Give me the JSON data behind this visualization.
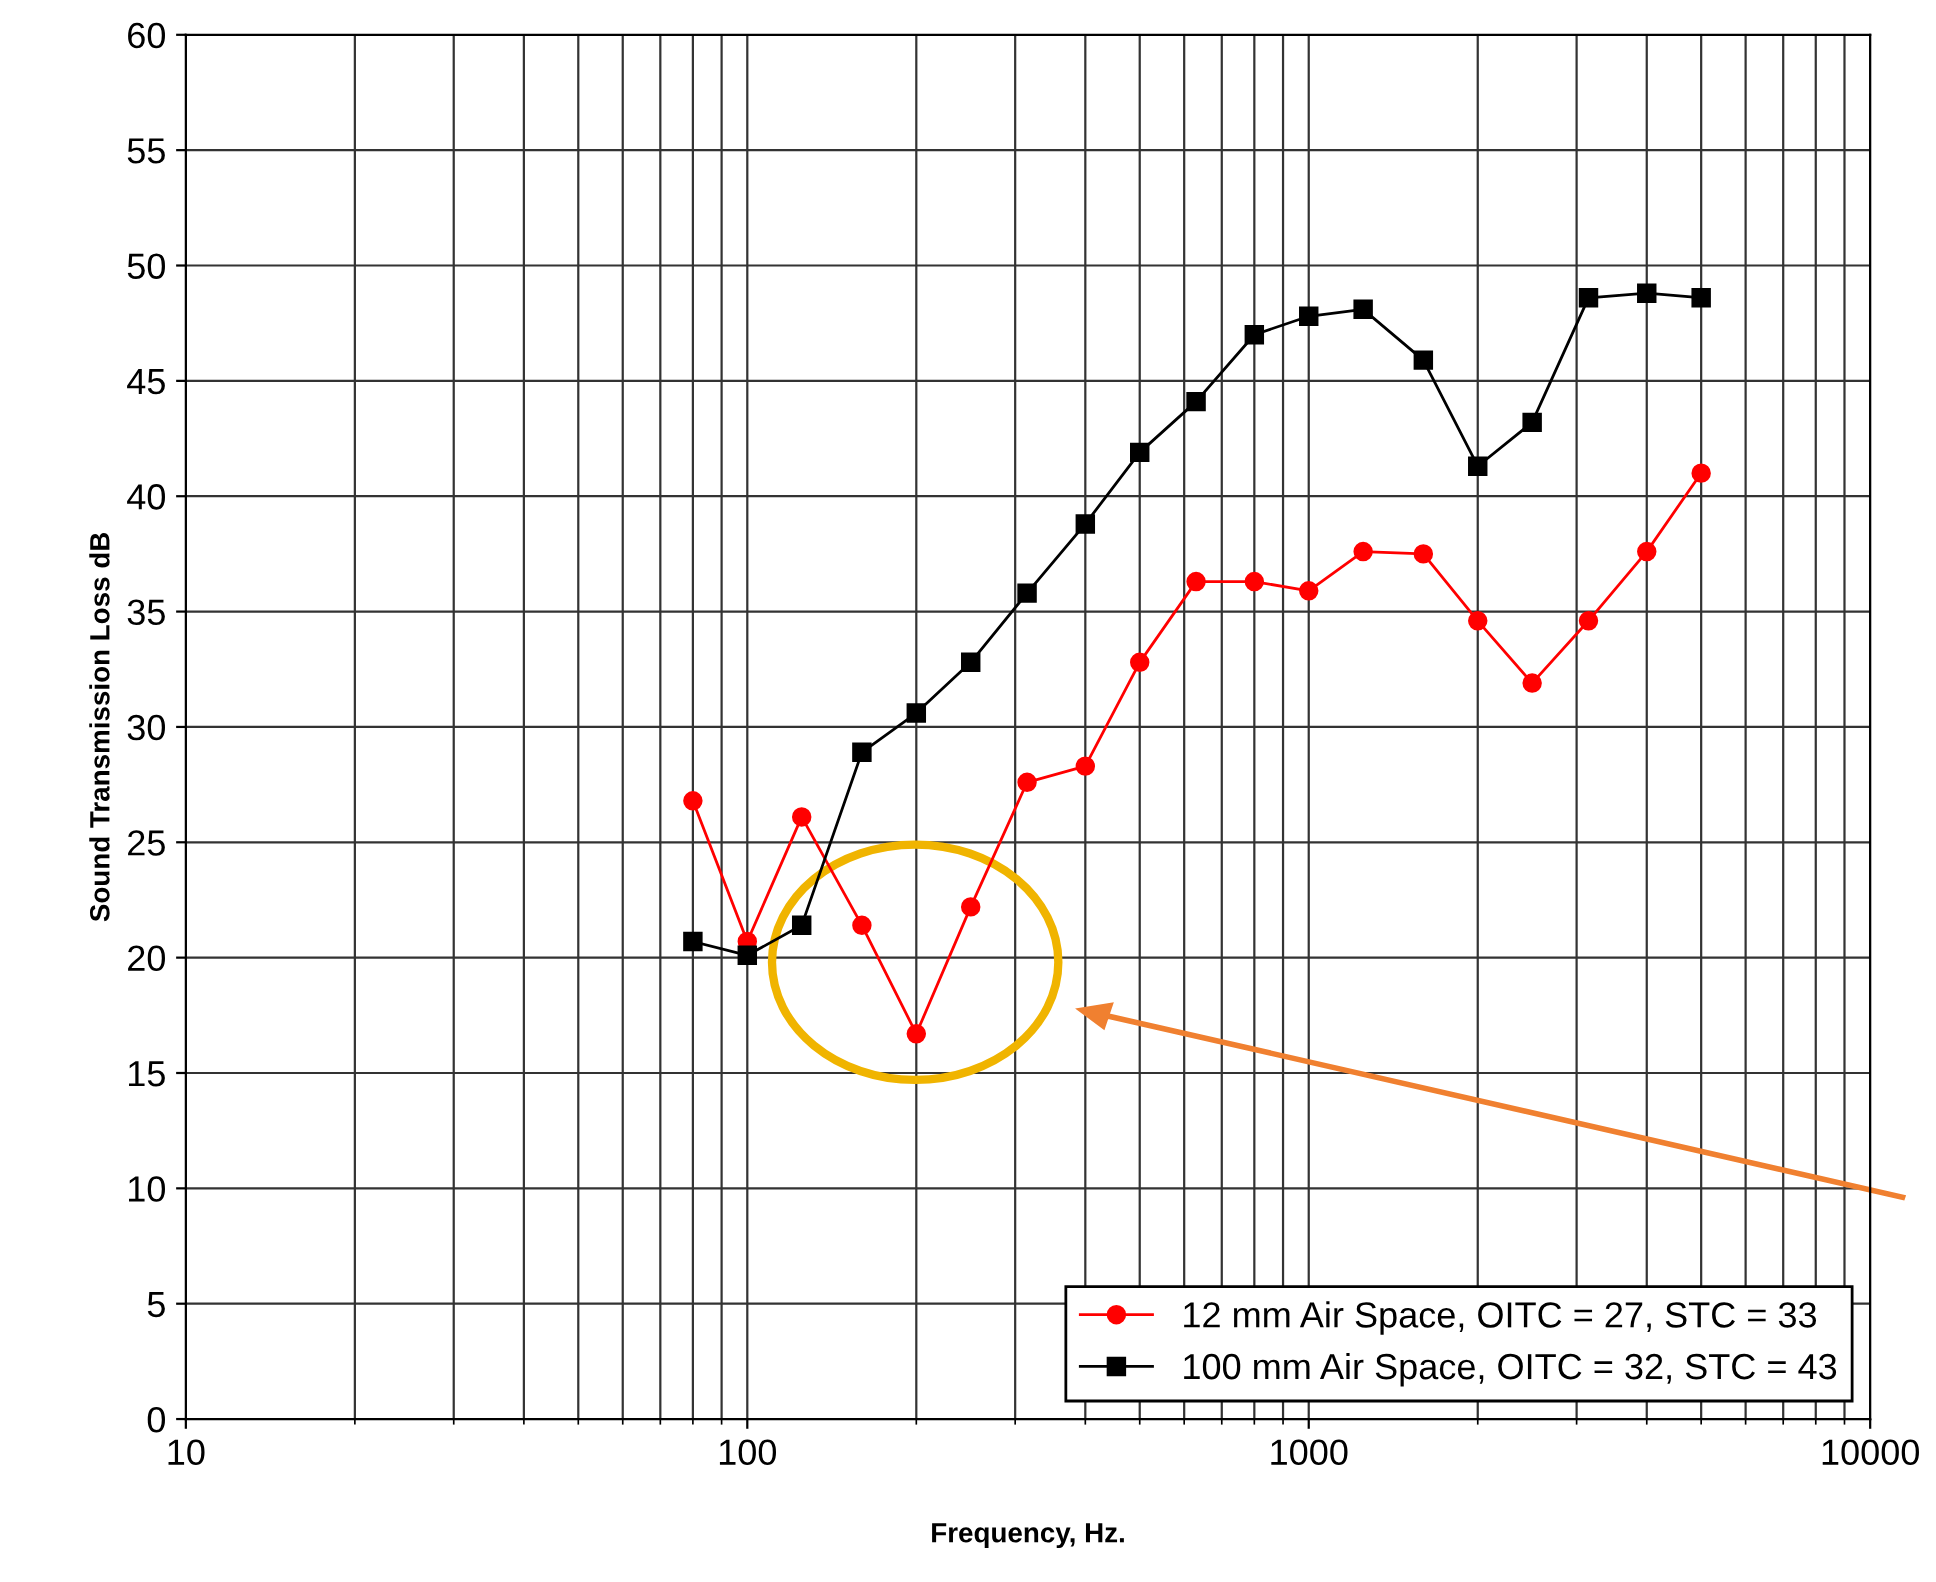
{
  "chart_data": {
    "type": "line",
    "xlabel": "Frequency, Hz.",
    "ylabel": "Sound Transmission Loss dB",
    "log": "x",
    "xlim": [
      10,
      10000
    ],
    "xticks": [
      10,
      100,
      1000,
      10000
    ],
    "ylim": [
      0,
      60
    ],
    "yticks": [
      0,
      5,
      10,
      15,
      20,
      25,
      30,
      35,
      40,
      45,
      50,
      55,
      60
    ],
    "grid": true,
    "legend": "bottom right",
    "x": [
      80,
      100,
      125,
      160,
      200,
      250,
      315,
      400,
      500,
      630,
      800,
      1000,
      1250,
      1600,
      2000,
      2500,
      3150,
      4000,
      5000
    ],
    "series": [
      {
        "name": "12 mm Air Space, OITC = 27, STC = 33",
        "color": "#ff0000",
        "marker": "circle",
        "values": [
          26.8,
          20.7,
          26.1,
          21.4,
          16.7,
          22.2,
          27.6,
          28.3,
          32.8,
          36.3,
          36.3,
          35.9,
          37.6,
          37.5,
          34.6,
          31.9,
          34.6,
          37.6,
          41.0
        ]
      },
      {
        "name": "100 mm Air Space, OITC = 32, STC = 43",
        "color": "#000000",
        "marker": "square",
        "values": [
          20.7,
          20.1,
          21.4,
          28.9,
          30.6,
          32.8,
          35.8,
          38.8,
          41.9,
          44.1,
          47.0,
          47.8,
          48.1,
          45.9,
          41.3,
          43.2,
          48.6,
          48.8,
          48.6
        ]
      }
    ]
  }
}
